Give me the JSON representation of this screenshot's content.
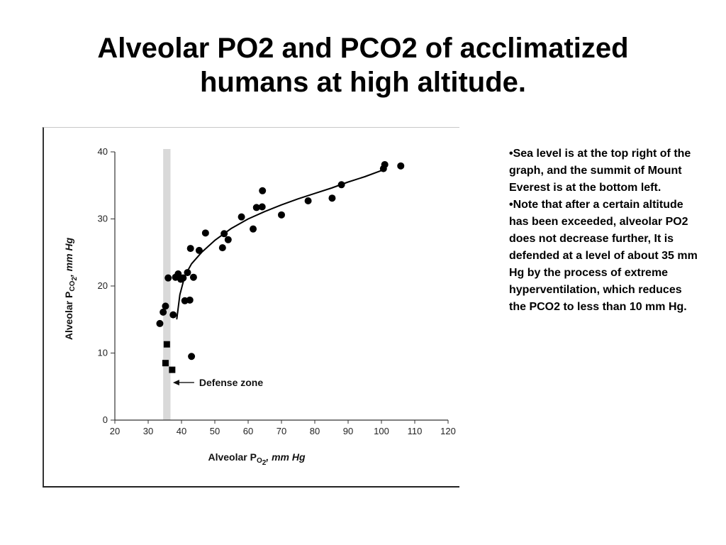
{
  "slide": {
    "title_lines": [
      "Alveolar PO2 and PCO2 of acclimatized",
      "humans at high altitude."
    ],
    "notes": [
      "•Sea level is at the top right of the graph, and the summit of Mount Everest is at the bottom left.",
      "•Note that after a certain altitude has been exceeded, alveolar PO2 does not decrease further, It is defended at a level of about 35 mm Hg by the process of extreme hyperventilation, which reduces the PCO2 to less than 10 mm Hg."
    ]
  },
  "chart_data": {
    "type": "scatter",
    "title": "",
    "xlabel_main": "Alveolar P",
    "xlabel_sub": "O",
    "xlabel_subscript": "2",
    "xlabel_unit": ", mm Hg",
    "ylabel_main": "Alveolar P",
    "ylabel_sub": "CO",
    "ylabel_subscript": "2",
    "ylabel_unit": ", mm Hg",
    "xlim": [
      20,
      120
    ],
    "ylim": [
      0,
      40
    ],
    "xticks": [
      20,
      30,
      40,
      50,
      60,
      70,
      80,
      90,
      100,
      110,
      120
    ],
    "yticks": [
      0,
      10,
      20,
      30,
      40
    ],
    "grid": false,
    "defense_band": {
      "x_from": 34.5,
      "x_to": 36.7,
      "color": "#d9d9d9"
    },
    "annotation": {
      "text": "Defense zone",
      "arrow_x": 37,
      "y": 5.6
    },
    "series": [
      {
        "marker": "circle",
        "points": [
          [
            33.5,
            14.4
          ],
          [
            34.5,
            16.1
          ],
          [
            35.2,
            17.0
          ],
          [
            36.0,
            21.2
          ],
          [
            37.5,
            15.7
          ],
          [
            38.2,
            21.3
          ],
          [
            39.0,
            21.8
          ],
          [
            39.8,
            21.0
          ],
          [
            40.5,
            21.2
          ],
          [
            41.0,
            17.8
          ],
          [
            41.8,
            22.0
          ],
          [
            42.5,
            17.9
          ],
          [
            42.7,
            25.6
          ],
          [
            43.0,
            9.5
          ],
          [
            43.6,
            21.3
          ],
          [
            45.3,
            25.3
          ],
          [
            47.2,
            27.9
          ],
          [
            52.3,
            25.7
          ],
          [
            52.8,
            27.8
          ],
          [
            54.0,
            26.9
          ],
          [
            58.0,
            30.3
          ],
          [
            61.5,
            28.5
          ],
          [
            62.5,
            31.7
          ],
          [
            64.2,
            31.8
          ],
          [
            64.3,
            34.2
          ],
          [
            70.0,
            30.6
          ],
          [
            78.0,
            32.7
          ],
          [
            85.2,
            33.1
          ],
          [
            88.0,
            35.1
          ],
          [
            100.6,
            37.5
          ],
          [
            101.0,
            38.1
          ],
          [
            105.8,
            37.9
          ]
        ]
      },
      {
        "marker": "square",
        "points": [
          [
            35.2,
            8.5
          ],
          [
            35.6,
            11.3
          ],
          [
            37.2,
            7.5
          ]
        ]
      }
    ],
    "fit_curve": [
      [
        38.6,
        15.1
      ],
      [
        39.5,
        18.7
      ],
      [
        41.0,
        21.5
      ],
      [
        43.0,
        23.3
      ],
      [
        46.0,
        25.0
      ],
      [
        50.0,
        26.8
      ],
      [
        55.0,
        28.6
      ],
      [
        60.0,
        30.0
      ],
      [
        65.0,
        31.1
      ],
      [
        70.0,
        32.1
      ],
      [
        75.0,
        33.0
      ],
      [
        80.0,
        33.8
      ],
      [
        85.0,
        34.6
      ],
      [
        90.0,
        35.5
      ],
      [
        95.0,
        36.3
      ],
      [
        101.0,
        37.4
      ]
    ],
    "colors": {
      "marker": "#000000",
      "curve": "#000000",
      "axis": "#333333"
    }
  }
}
